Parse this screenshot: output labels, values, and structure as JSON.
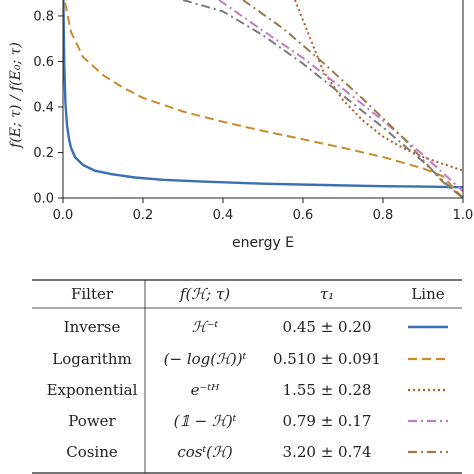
{
  "chart_data": {
    "type": "line",
    "xlabel": "energy E",
    "ylabel": "f(E; τ) / f(E₀; τ)",
    "xlim": [
      0.0,
      1.0
    ],
    "ylim": [
      0.0,
      0.87
    ],
    "xticks": [
      "0.0",
      "0.2",
      "0.4",
      "0.6",
      "0.8",
      "1.0"
    ],
    "yticks": [
      "0.0",
      "0.2",
      "0.4",
      "0.6",
      "0.8"
    ],
    "grid": false,
    "series": [
      {
        "name": "Inverse",
        "color": "#3a6fb5",
        "style": "solid",
        "x": [
          0.001,
          0.003,
          0.006,
          0.01,
          0.015,
          0.02,
          0.03,
          0.05,
          0.08,
          0.12,
          0.18,
          0.25,
          0.35,
          0.5,
          0.65,
          0.8,
          0.9,
          0.97,
          1.0
        ],
        "y": [
          0.87,
          0.6,
          0.42,
          0.32,
          0.26,
          0.22,
          0.18,
          0.145,
          0.12,
          0.105,
          0.09,
          0.08,
          0.072,
          0.063,
          0.057,
          0.052,
          0.05,
          0.048,
          0.047
        ]
      },
      {
        "name": "Logarithm",
        "color": "#c98a2b",
        "style": "dash",
        "x": [
          0.005,
          0.02,
          0.05,
          0.1,
          0.15,
          0.2,
          0.3,
          0.4,
          0.5,
          0.6,
          0.7,
          0.8,
          0.9,
          0.95,
          1.0
        ],
        "y": [
          0.86,
          0.73,
          0.62,
          0.54,
          0.485,
          0.44,
          0.38,
          0.335,
          0.295,
          0.258,
          0.22,
          0.18,
          0.13,
          0.095,
          0.0
        ]
      },
      {
        "name": "Exponential",
        "color": "#b35a1f",
        "style": "dot",
        "x": [
          0.58,
          0.65,
          0.7,
          0.75,
          0.8,
          0.85,
          0.9,
          0.95,
          1.0
        ],
        "y": [
          0.87,
          0.56,
          0.43,
          0.34,
          0.27,
          0.22,
          0.18,
          0.15,
          0.12
        ]
      },
      {
        "name": "Power",
        "color": "#c27ac4",
        "style": "dashdot",
        "x": [
          0.39,
          0.5,
          0.6,
          0.7,
          0.8,
          0.9,
          1.0
        ],
        "y": [
          0.87,
          0.735,
          0.615,
          0.48,
          0.34,
          0.19,
          0.03
        ]
      },
      {
        "name": "Cosine",
        "color": "#9e7a4a",
        "style": "dashdot",
        "x": [
          0.45,
          0.55,
          0.65,
          0.75,
          0.85,
          0.95,
          1.0
        ],
        "y": [
          0.87,
          0.745,
          0.595,
          0.435,
          0.265,
          0.07,
          0.0
        ]
      },
      {
        "name": "",
        "color": "#7a7a7a",
        "style": "dashdot",
        "x": [
          0.3,
          0.4,
          0.5,
          0.6,
          0.7,
          0.8,
          0.9,
          0.95,
          1.0
        ],
        "y": [
          0.87,
          0.82,
          0.715,
          0.59,
          0.45,
          0.31,
          0.16,
          0.075,
          0.0
        ]
      }
    ]
  },
  "table": {
    "headers": [
      "Filter",
      "f(ℋ; τ)",
      "τ₁",
      "Line"
    ],
    "rows": [
      {
        "filter": "Inverse",
        "func": "ℋ⁻ᵗ",
        "tau": "0.45 ± 0.20",
        "color": "#3a6fb5",
        "style": "solid"
      },
      {
        "filter": "Logarithm",
        "func": "(− log(ℋ))ᵗ",
        "tau": "0.510 ± 0.091",
        "color": "#c98a2b",
        "style": "dash"
      },
      {
        "filter": "Exponential",
        "func": "e⁻ᵗᴴ",
        "tau": "1.55 ± 0.28",
        "color": "#b35a1f",
        "style": "dot"
      },
      {
        "filter": "Power",
        "func": "(𝟙 − ℋ)ᵗ",
        "tau": "0.79 ± 0.17",
        "color": "#c27ac4",
        "style": "dashdot"
      },
      {
        "filter": "Cosine",
        "func": "cosᵗ(ℋ)",
        "tau": "3.20 ± 0.74",
        "color": "#9e7a4a",
        "style": "dashdot"
      }
    ]
  }
}
